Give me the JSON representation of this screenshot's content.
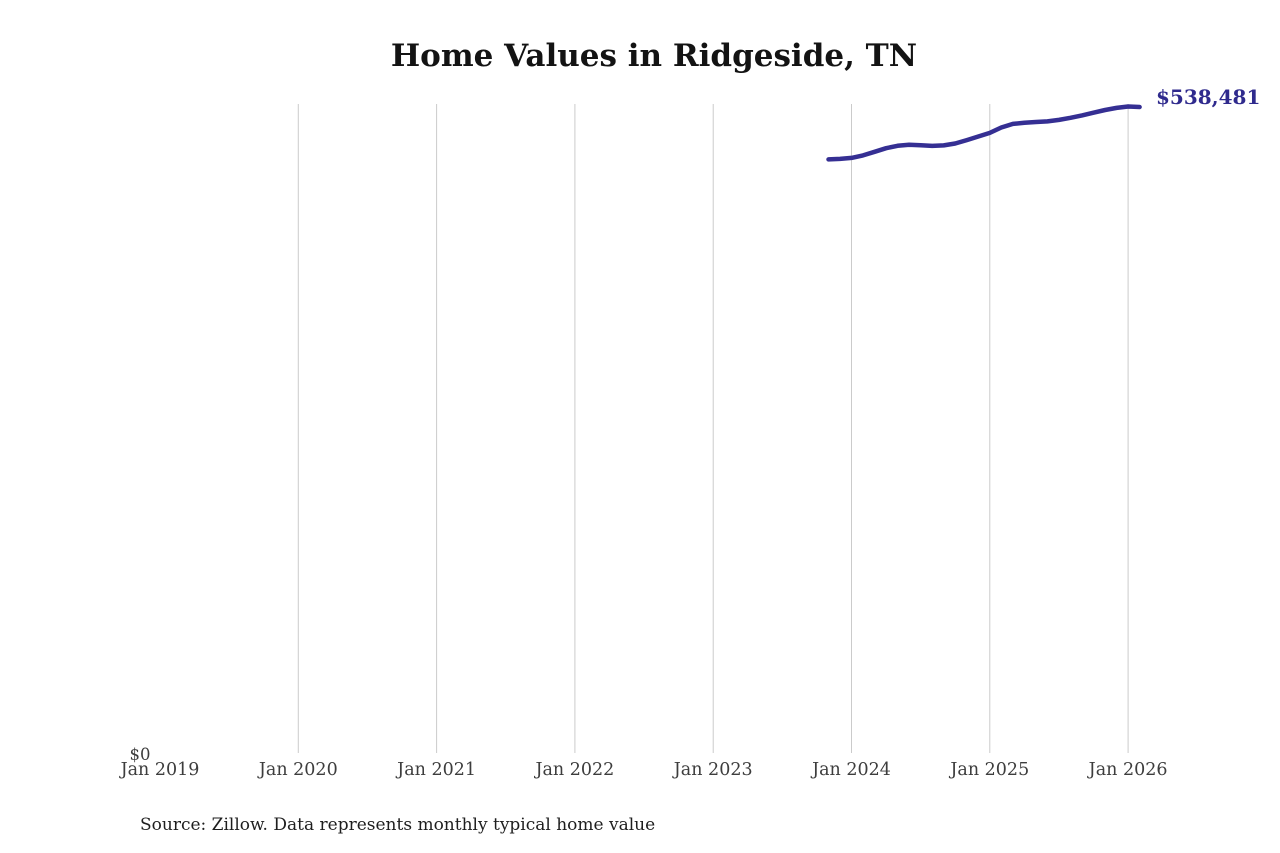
{
  "title": "Home Values in Ridgeside, TN",
  "source_note": "Source: Zillow. Data represents monthly typical home value",
  "end_value_label": "$538,481",
  "y_zero_label": "$0",
  "colors": {
    "line": "#352f93",
    "end_label_text": "#2f2a8d",
    "grid": "#cbcbcb",
    "axis_text": "#3d3d3d",
    "title_text": "#131313",
    "source_text": "#1e1e1e",
    "background": "#ffffff"
  },
  "chart_data": {
    "type": "line",
    "title": "Home Values in Ridgeside, TN",
    "xlabel": "",
    "ylabel": "",
    "grid": "vertical-only",
    "legend": "none",
    "ylim": [
      0,
      541000
    ],
    "x_tick_labels": [
      "Jan 2019",
      "Jan 2020",
      "Jan 2021",
      "Jan 2022",
      "Jan 2023",
      "Jan 2024",
      "Jan 2025",
      "Jan 2026"
    ],
    "y_tick_labels": [
      "$0"
    ],
    "end_annotation": "$538,481",
    "series": [
      {
        "name": "Monthly typical home value",
        "x": [
          "2023-11",
          "2023-12",
          "2024-01",
          "2024-02",
          "2024-03",
          "2024-04",
          "2024-05",
          "2024-06",
          "2024-07",
          "2024-08",
          "2024-09",
          "2024-10",
          "2024-11",
          "2024-12",
          "2025-01",
          "2025-02",
          "2025-03",
          "2025-04",
          "2025-05",
          "2025-06",
          "2025-07",
          "2025-08",
          "2025-09",
          "2025-10",
          "2025-11",
          "2025-12",
          "2026-01",
          "2026-02"
        ],
        "values": [
          495000,
          495400,
          496200,
          498300,
          501300,
          504300,
          506300,
          507200,
          506800,
          506200,
          506600,
          508200,
          511000,
          514000,
          517000,
          521500,
          524500,
          525500,
          526000,
          526500,
          527800,
          529500,
          531500,
          533800,
          536000,
          537800,
          538900,
          538481
        ]
      }
    ]
  }
}
